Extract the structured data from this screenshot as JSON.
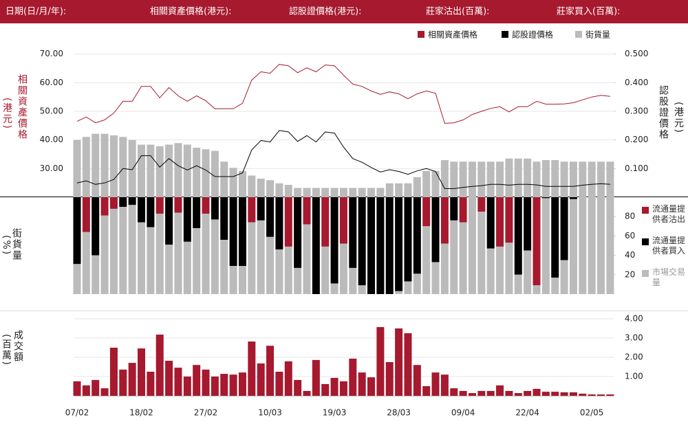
{
  "header": {
    "labels": [
      "日期(日/月/年):",
      "相關資產價格(港元):",
      "認股證價格(港元):",
      "莊家沽出(百萬):",
      "莊家買入(百萬):"
    ]
  },
  "chart_data": [
    {
      "type": "line",
      "ylabel": "相關資產價格",
      "yunit": "(港元)",
      "y2label": "認股證價格",
      "y2unit": "(港元)",
      "ylim": [
        20,
        74
      ],
      "yticks": [
        {
          "value": 30,
          "label": "30.00"
        },
        {
          "value": 40,
          "label": "40.00"
        },
        {
          "value": 50,
          "label": "50.00"
        },
        {
          "value": 60,
          "label": "60.00"
        },
        {
          "value": 70,
          "label": "70.00"
        }
      ],
      "y2lim": [
        0,
        0.54
      ],
      "y2ticks": [
        {
          "value": 0.1,
          "label": "0.100"
        },
        {
          "value": 0.2,
          "label": "0.200"
        },
        {
          "value": 0.3,
          "label": "0.300"
        },
        {
          "value": 0.4,
          "label": "0.400"
        },
        {
          "value": 0.5,
          "label": "0.500"
        }
      ],
      "y3lim": [
        0,
        100
      ],
      "grid": true,
      "legend": "top-right",
      "series": [
        {
          "name": "相關資產價格",
          "type": "line",
          "color": "#a6192e",
          "values": [
            46.5,
            48.0,
            46.0,
            47.0,
            49.4,
            53.5,
            53.5,
            58.7,
            58.7,
            54.7,
            58.3,
            55.4,
            53.5,
            55.4,
            53.7,
            50.9,
            50.9,
            50.9,
            52.8,
            60.9,
            63.8,
            63.3,
            66.4,
            65.9,
            63.5,
            65.2,
            63.8,
            66.2,
            65.9,
            62.6,
            59.5,
            58.7,
            57.1,
            55.9,
            56.8,
            56.1,
            54.4,
            56.1,
            57.1,
            56.3,
            45.8,
            46.0,
            47.0,
            48.9,
            50.0,
            51.0,
            51.6,
            49.8,
            51.6,
            51.6,
            53.5,
            52.5,
            52.5,
            52.6,
            53.0,
            54.0,
            55.0,
            55.6,
            55.2
          ]
        },
        {
          "name": "認股證價格",
          "type": "line",
          "color": "#000000",
          "axis": "y2",
          "values": [
            0.05,
            0.057,
            0.045,
            0.05,
            0.062,
            0.1,
            0.096,
            0.145,
            0.145,
            0.105,
            0.135,
            0.11,
            0.095,
            0.11,
            0.095,
            0.072,
            0.072,
            0.072,
            0.085,
            0.165,
            0.198,
            0.193,
            0.233,
            0.228,
            0.195,
            0.215,
            0.193,
            0.228,
            0.224,
            0.175,
            0.135,
            0.122,
            0.104,
            0.088,
            0.096,
            0.09,
            0.08,
            0.092,
            0.1,
            0.09,
            0.03,
            0.03,
            0.034,
            0.038,
            0.04,
            0.045,
            0.045,
            0.042,
            0.045,
            0.045,
            0.043,
            0.038,
            0.038,
            0.038,
            0.038,
            0.042,
            0.045,
            0.047,
            0.045
          ]
        },
        {
          "name": "街貨量",
          "type": "bar",
          "color": "#bbbbbb",
          "axis": "y3",
          "values": [
            37,
            39,
            41,
            41,
            40,
            39,
            37,
            34,
            34,
            33,
            34,
            35,
            34,
            32,
            31,
            30,
            23,
            19,
            17,
            14,
            12,
            11,
            9,
            8,
            6,
            6,
            6,
            6,
            6,
            6,
            6,
            6,
            6,
            6,
            9,
            9,
            9,
            13,
            17,
            17,
            24,
            23,
            23,
            23,
            23,
            23,
            23,
            25,
            25,
            25,
            23,
            24,
            24,
            23,
            23,
            23,
            23,
            23,
            23
          ]
        }
      ]
    },
    {
      "type": "bar",
      "stacked": true,
      "ylabel": "街貨量",
      "yunit": "(%)",
      "ylim": [
        0,
        100
      ],
      "yticks": [
        20,
        40,
        60,
        80
      ],
      "legend": "right",
      "series": [
        {
          "name": "流通量提供者沽出",
          "color": "#a6192e",
          "anchor": "top",
          "values": [
            null,
            36,
            null,
            19,
            12,
            null,
            null,
            null,
            null,
            17,
            null,
            16,
            null,
            null,
            17,
            null,
            null,
            null,
            null,
            26,
            null,
            null,
            null,
            51,
            null,
            28,
            null,
            51,
            null,
            48,
            null,
            null,
            null,
            null,
            null,
            null,
            null,
            null,
            30,
            null,
            48,
            null,
            26,
            null,
            15,
            null,
            51,
            47,
            null,
            null,
            91,
            null,
            null,
            null,
            null,
            null,
            null,
            null,
            null
          ]
        },
        {
          "name": "流通量提供者買入",
          "color": "#000000",
          "anchor": "top",
          "values": [
            69,
            null,
            60,
            null,
            null,
            10,
            8,
            26,
            31,
            null,
            49,
            null,
            46,
            32,
            null,
            23,
            44,
            71,
            71,
            null,
            24,
            41,
            54,
            null,
            73,
            null,
            100,
            null,
            89,
            null,
            73,
            91,
            100,
            100,
            100,
            97,
            87,
            79,
            null,
            67,
            null,
            24,
            null,
            null,
            null,
            53,
            null,
            null,
            80,
            55,
            null,
            1,
            83,
            65,
            2,
            null,
            null,
            null,
            null
          ]
        },
        {
          "name": "市場交易量",
          "color": "#bbbbbb",
          "anchor": "bottom",
          "values": [
            31,
            64,
            40,
            81,
            88,
            90,
            92,
            74,
            69,
            83,
            51,
            84,
            54,
            68,
            83,
            77,
            56,
            29,
            29,
            74,
            76,
            59,
            46,
            49,
            27,
            72,
            0,
            49,
            11,
            52,
            27,
            9,
            0,
            0,
            0,
            3,
            13,
            21,
            70,
            33,
            52,
            76,
            74,
            100,
            85,
            47,
            49,
            53,
            20,
            45,
            9,
            99,
            17,
            35,
            98,
            100,
            100,
            100,
            100
          ]
        }
      ]
    },
    {
      "type": "bar",
      "ylabel": "成交額",
      "yunit": "(百萬)",
      "ylim": [
        0,
        4.4
      ],
      "yticks": [
        {
          "value": 1,
          "label": "1.00"
        },
        {
          "value": 2,
          "label": "2.00"
        },
        {
          "value": 3,
          "label": "3.00"
        },
        {
          "value": 4,
          "label": "4.00"
        }
      ],
      "grid": true,
      "color": "#a6192e",
      "categories": [
        "07/02",
        null,
        null,
        null,
        null,
        null,
        null,
        "18/02",
        null,
        null,
        null,
        null,
        null,
        null,
        "27/02",
        null,
        null,
        null,
        null,
        null,
        null,
        "10/03",
        null,
        null,
        null,
        null,
        null,
        null,
        "19/03",
        null,
        null,
        null,
        null,
        null,
        null,
        "28/03",
        null,
        null,
        null,
        null,
        null,
        null,
        "09/04",
        null,
        null,
        null,
        null,
        null,
        null,
        "22/04",
        null,
        null,
        null,
        null,
        null,
        null,
        "02/05",
        null,
        null
      ],
      "values": [
        0.75,
        0.54,
        0.82,
        0.39,
        2.5,
        1.36,
        1.71,
        2.46,
        1.25,
        3.18,
        1.82,
        1.46,
        1.0,
        1.6,
        1.36,
        1.0,
        1.14,
        1.1,
        1.21,
        2.82,
        1.68,
        2.6,
        1.25,
        1.79,
        0.82,
        0.25,
        1.86,
        0.61,
        0.93,
        0.75,
        1.93,
        1.21,
        0.96,
        3.57,
        1.75,
        3.5,
        3.25,
        1.6,
        0.5,
        1.21,
        1.1,
        0.39,
        0.25,
        0.14,
        0.25,
        0.25,
        0.54,
        0.25,
        0.14,
        0.25,
        0.36,
        0.21,
        0.21,
        0.18,
        0.18,
        0.11,
        0.07,
        0.07,
        0.07
      ]
    }
  ]
}
